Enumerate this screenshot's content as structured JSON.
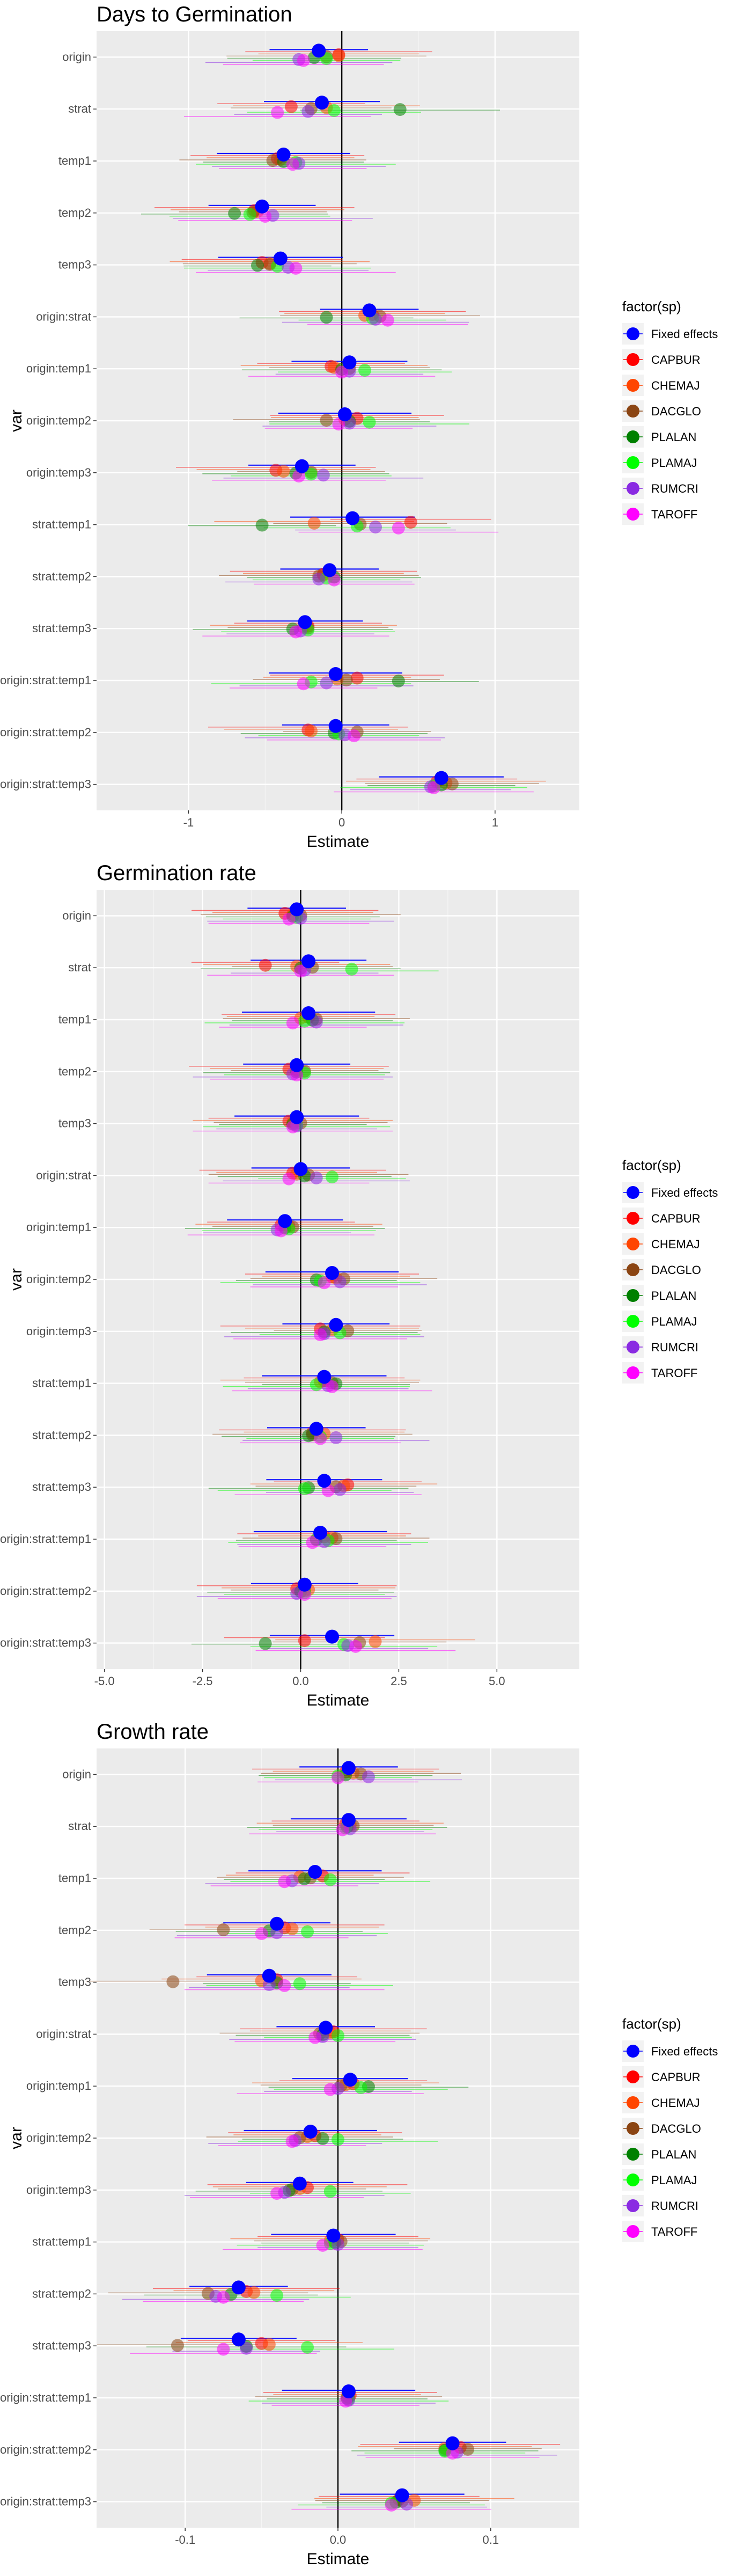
{
  "legend": {
    "title": "factor(sp)",
    "entries": [
      {
        "name": "Fixed effects",
        "color": "#0000ff"
      },
      {
        "name": "CAPBUR",
        "color": "#ff0000"
      },
      {
        "name": "CHEMAJ",
        "color": "#ff4500"
      },
      {
        "name": "DACGLO",
        "color": "#8b4513"
      },
      {
        "name": "PLALAN",
        "color": "#008000"
      },
      {
        "name": "PLAMAJ",
        "color": "#00ff00"
      },
      {
        "name": "RUMCRI",
        "color": "#8a2be2"
      },
      {
        "name": "TAROFF",
        "color": "#ff00ff"
      }
    ]
  },
  "chart_data": [
    {
      "type": "scatter",
      "title": "Days to Germination",
      "xlabel": "Estimate",
      "ylabel": "var",
      "xlim": [
        -1.6,
        1.55
      ],
      "xticks": [
        -1,
        0,
        1
      ],
      "xtick_labels": [
        "-1",
        "0",
        "1"
      ],
      "categories": [
        "origin",
        "strat",
        "temp1",
        "temp2",
        "temp3",
        "origin:strat",
        "origin:temp1",
        "origin:temp2",
        "origin:temp3",
        "strat:temp1",
        "strat:temp2",
        "strat:temp3",
        "origin:strat:temp1",
        "origin:strat:temp2",
        "origin:strat:temp3"
      ],
      "series": [
        {
          "name": "Fixed effects",
          "values": [
            -0.15,
            -0.13,
            -0.38,
            -0.52,
            -0.4,
            0.18,
            0.05,
            0.02,
            -0.26,
            0.07,
            -0.08,
            -0.24,
            -0.04,
            -0.04,
            0.65
          ]
        },
        {
          "name": "CAPBUR",
          "values": [
            -0.02,
            -0.33,
            -0.42,
            -0.57,
            -0.52,
            0.2,
            -0.07,
            0.1,
            -0.43,
            0.45,
            -0.12,
            -0.22,
            0.1,
            -0.22,
            0.62
          ]
        },
        {
          "name": "CHEMAJ",
          "values": [
            -0.02,
            -0.1,
            -0.4,
            -0.55,
            -0.47,
            0.15,
            -0.05,
            0.02,
            -0.38,
            -0.18,
            -0.12,
            -0.25,
            -0.03,
            -0.2,
            0.68
          ]
        },
        {
          "name": "DACGLO",
          "values": [
            -0.1,
            -0.2,
            -0.45,
            -0.58,
            -0.47,
            0.25,
            0.05,
            -0.1,
            -0.2,
            0.12,
            -0.15,
            -0.22,
            0.03,
            0.1,
            0.72
          ]
        },
        {
          "name": "PLALAN",
          "values": [
            -0.18,
            0.38,
            -0.38,
            -0.7,
            -0.55,
            -0.1,
            0.0,
            0.05,
            -0.3,
            -0.52,
            -0.05,
            -0.32,
            0.37,
            -0.05,
            0.65
          ]
        },
        {
          "name": "PLAMAJ",
          "values": [
            -0.1,
            -0.05,
            -0.3,
            -0.6,
            -0.42,
            0.2,
            0.15,
            0.18,
            -0.2,
            0.1,
            -0.1,
            -0.22,
            -0.2,
            -0.02,
            0.6
          ]
        },
        {
          "name": "RUMCRI",
          "values": [
            -0.28,
            -0.22,
            -0.28,
            -0.45,
            -0.35,
            0.22,
            0.05,
            0.05,
            -0.12,
            0.22,
            -0.15,
            -0.27,
            -0.1,
            0.02,
            0.58
          ]
        },
        {
          "name": "TAROFF",
          "values": [
            -0.25,
            -0.42,
            -0.32,
            -0.5,
            -0.3,
            0.3,
            0.0,
            -0.02,
            -0.28,
            0.37,
            -0.05,
            -0.3,
            -0.25,
            0.08,
            0.6
          ]
        }
      ]
    },
    {
      "type": "scatter",
      "title": "Germination rate",
      "xlabel": "Estimate",
      "ylabel": "var",
      "xlim": [
        -5.2,
        7.1
      ],
      "xticks": [
        -5,
        -2.5,
        0,
        2.5,
        5
      ],
      "xtick_labels": [
        "-5.0",
        "-2.5",
        "0.0",
        "2.5",
        "5.0"
      ],
      "categories": [
        "origin",
        "strat",
        "temp1",
        "temp2",
        "temp3",
        "origin:strat",
        "origin:temp1",
        "origin:temp2",
        "origin:temp3",
        "strat:temp1",
        "strat:temp2",
        "strat:temp3",
        "origin:strat:temp1",
        "origin:strat:temp2",
        "origin:strat:temp3"
      ],
      "series": [
        {
          "name": "Fixed effects",
          "values": [
            -0.1,
            0.2,
            0.2,
            -0.1,
            -0.1,
            0.0,
            -0.4,
            0.8,
            0.9,
            0.6,
            0.4,
            0.6,
            0.5,
            0.1,
            0.8
          ]
        },
        {
          "name": "CAPBUR",
          "values": [
            -0.4,
            -0.9,
            0.2,
            -0.3,
            -0.3,
            -0.2,
            -0.5,
            0.8,
            0.5,
            0.6,
            0.3,
            1.2,
            0.6,
            -0.1,
            0.1
          ]
        },
        {
          "name": "CHEMAJ",
          "values": [
            -0.2,
            -0.1,
            0.0,
            -0.1,
            -0.2,
            -0.1,
            -0.3,
            0.9,
            0.8,
            0.5,
            0.6,
            1.1,
            0.8,
            0.2,
            1.9
          ]
        },
        {
          "name": "DACGLO",
          "values": [
            0.0,
            0.3,
            0.4,
            0.1,
            0.0,
            0.2,
            -0.2,
            1.1,
            1.2,
            0.8,
            0.3,
            0.9,
            0.9,
            0.1,
            1.5
          ]
        },
        {
          "name": "PLALAN",
          "values": [
            -0.2,
            0.0,
            0.3,
            -0.1,
            -0.2,
            0.1,
            -0.4,
            0.4,
            0.6,
            0.9,
            0.2,
            0.2,
            0.4,
            0.0,
            -0.9
          ]
        },
        {
          "name": "PLAMAJ",
          "values": [
            -0.1,
            1.3,
            0.1,
            0.1,
            -0.1,
            0.8,
            -0.3,
            0.5,
            1.0,
            0.4,
            0.5,
            0.1,
            0.7,
            0.1,
            1.1
          ]
        },
        {
          "name": "RUMCRI",
          "values": [
            0.0,
            0.1,
            0.4,
            -0.2,
            -0.1,
            0.4,
            -0.6,
            1.0,
            0.6,
            0.7,
            0.9,
            1.0,
            0.6,
            -0.1,
            1.2
          ]
        },
        {
          "name": "TAROFF",
          "values": [
            -0.3,
            0.0,
            -0.2,
            -0.1,
            -0.2,
            -0.3,
            -0.5,
            0.6,
            0.5,
            0.8,
            0.5,
            0.7,
            0.3,
            0.1,
            1.4
          ]
        }
      ]
    },
    {
      "type": "scatter",
      "title": "Growth rate",
      "xlabel": "Estimate",
      "ylabel": "var",
      "xlim": [
        -0.158,
        0.158
      ],
      "xticks": [
        -0.1,
        0,
        0.1
      ],
      "xtick_labels": [
        "-0.1",
        "0.0",
        "0.1"
      ],
      "categories": [
        "origin",
        "strat",
        "temp1",
        "temp2",
        "temp3",
        "origin:strat",
        "origin:temp1",
        "origin:temp2",
        "origin:temp3",
        "strat:temp1",
        "strat:temp2",
        "strat:temp3",
        "origin:strat:temp1",
        "origin:strat:temp2",
        "origin:strat:temp3"
      ],
      "series": [
        {
          "name": "Fixed effects",
          "values": [
            0.007,
            0.007,
            -0.015,
            -0.04,
            -0.045,
            -0.008,
            0.008,
            -0.018,
            -0.025,
            -0.003,
            -0.065,
            -0.065,
            0.007,
            0.075,
            0.042
          ]
        },
        {
          "name": "CAPBUR",
          "values": [
            0.005,
            0.005,
            -0.01,
            -0.035,
            -0.04,
            -0.003,
            0.01,
            -0.015,
            -0.02,
            0.0,
            -0.06,
            -0.05,
            0.008,
            0.08,
            0.04
          ]
        },
        {
          "name": "CHEMAJ",
          "values": [
            0.01,
            0.008,
            -0.025,
            -0.03,
            -0.05,
            -0.005,
            0.005,
            -0.02,
            -0.025,
            -0.005,
            -0.055,
            -0.045,
            0.006,
            0.07,
            0.05
          ]
        },
        {
          "name": "DACGLO",
          "values": [
            0.015,
            0.01,
            -0.018,
            -0.075,
            -0.108,
            -0.012,
            0.002,
            -0.025,
            -0.03,
            0.002,
            -0.085,
            -0.105,
            0.007,
            0.085,
            0.042
          ]
        },
        {
          "name": "PLALAN",
          "values": [
            0.005,
            0.006,
            -0.022,
            -0.045,
            -0.04,
            -0.01,
            0.02,
            -0.01,
            -0.032,
            -0.002,
            -0.07,
            -0.06,
            0.006,
            0.07,
            0.038
          ]
        },
        {
          "name": "PLAMAJ",
          "values": [
            0.0,
            0.005,
            -0.005,
            -0.02,
            -0.025,
            0.0,
            0.015,
            0.0,
            -0.005,
            -0.005,
            -0.04,
            -0.02,
            0.007,
            0.07,
            0.035
          ]
        },
        {
          "name": "RUMCRI",
          "values": [
            0.02,
            0.008,
            -0.03,
            -0.04,
            -0.045,
            -0.01,
            0.0,
            -0.028,
            -0.035,
            0.0,
            -0.08,
            -0.06,
            0.007,
            0.078,
            0.045
          ]
        },
        {
          "name": "TAROFF",
          "values": [
            0.0,
            0.003,
            -0.035,
            -0.05,
            -0.035,
            -0.015,
            -0.005,
            -0.03,
            -0.04,
            -0.01,
            -0.075,
            -0.075,
            0.005,
            0.075,
            0.035
          ]
        }
      ]
    }
  ]
}
